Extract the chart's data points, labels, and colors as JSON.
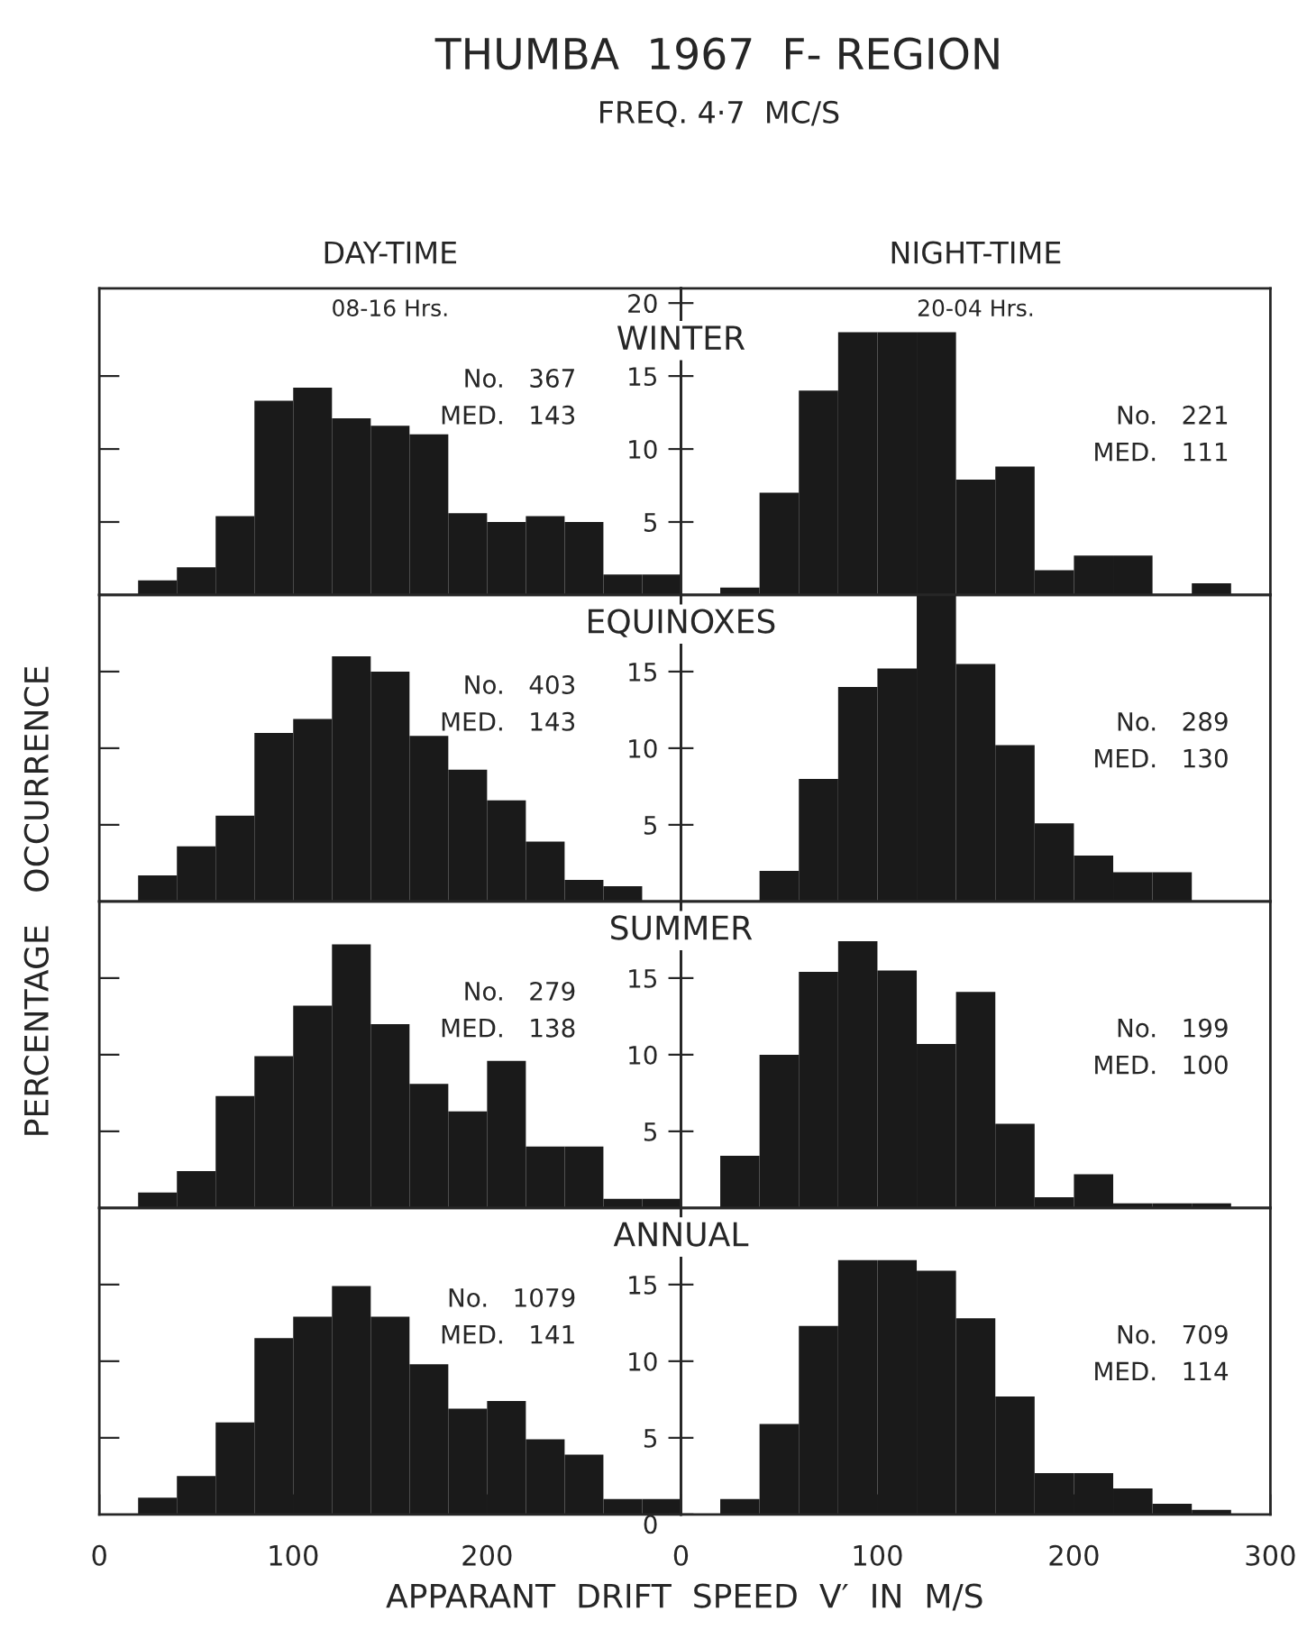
{
  "chart_data": [
    {
      "type": "histogram",
      "title": "DAY-TIME",
      "subtitle": "WINTER",
      "bins": [
        20,
        40,
        60,
        80,
        100,
        120,
        140,
        160,
        180,
        200,
        220,
        240,
        260,
        280,
        300
      ],
      "values": [
        1.0,
        1.9,
        5.4,
        13.3,
        14.2,
        12.1,
        11.6,
        11.0,
        5.6,
        5.0,
        5.4,
        5.0,
        1.4,
        1.4
      ],
      "color": "#1a1a1a",
      "xlim": [
        0,
        300
      ],
      "ylim": [
        0,
        21
      ],
      "yticks": [
        {
          "value": 5,
          "label": null
        },
        {
          "value": 10,
          "label": null
        },
        {
          "value": 15,
          "label": null
        }
      ],
      "tick_labels": false,
      "annotations": [
        "THUMBA  1967  F- REGION",
        "FREQ. 4·7  MC/S",
        "08-16 Hrs.",
        "No.   367",
        "MED.   143"
      ],
      "ylabel": "PERCENTAGE   OCCURRENCE"
    },
    {
      "type": "histogram",
      "title": "NIGHT-TIME",
      "bins": [
        20,
        40,
        60,
        80,
        100,
        120,
        140,
        160,
        180,
        200,
        220,
        240,
        260,
        280
      ],
      "values": [
        0.5,
        7.0,
        14.0,
        18.0,
        18.0,
        18.0,
        7.9,
        8.8,
        1.7,
        2.7,
        2.7,
        0,
        0.8
      ],
      "color": "#1a1a1a",
      "xlim": [
        0,
        300
      ],
      "ylim": [
        0,
        21
      ],
      "yticks": [
        5,
        10,
        15,
        20
      ],
      "tick_labels": "y",
      "annotations": [
        "20-04 Hrs.",
        "No.   221",
        "MED.   111"
      ]
    },
    {
      "type": "histogram",
      "subtitle": "EQUINOXES",
      "bins": [
        20,
        40,
        60,
        80,
        100,
        120,
        140,
        160,
        180,
        200,
        220,
        240,
        260,
        280
      ],
      "values": [
        1.7,
        3.6,
        5.6,
        11.0,
        11.9,
        16.0,
        15.0,
        10.8,
        8.6,
        6.6,
        3.9,
        1.4,
        1.0
      ],
      "color": "#1a1a1a",
      "xlim": [
        0,
        300
      ],
      "ylim": [
        0,
        20
      ],
      "yticks": [
        {
          "value": 5,
          "label": null
        },
        {
          "value": 10,
          "label": null
        },
        {
          "value": 15,
          "label": null
        }
      ],
      "tick_labels": false,
      "annotations": [
        "No.   403",
        "MED.   143"
      ]
    },
    {
      "type": "histogram",
      "bins": [
        40,
        60,
        80,
        100,
        120,
        140,
        160,
        180,
        200,
        220,
        240,
        260
      ],
      "values": [
        2.0,
        8.0,
        14.0,
        15.2,
        20.0,
        15.5,
        10.2,
        5.1,
        3.0,
        1.9,
        1.9
      ],
      "color": "#1a1a1a",
      "xlim": [
        0,
        300
      ],
      "ylim": [
        0,
        20
      ],
      "yticks": [
        5,
        10,
        15
      ],
      "tick_labels": "y",
      "annotations": [
        "No.   289",
        "MED.   130"
      ]
    },
    {
      "type": "histogram",
      "subtitle": "SUMMER",
      "bins": [
        20,
        40,
        60,
        80,
        100,
        120,
        140,
        160,
        180,
        200,
        220,
        240,
        260,
        280,
        300
      ],
      "values": [
        1.0,
        2.4,
        7.3,
        9.9,
        13.2,
        17.2,
        12.0,
        8.1,
        6.3,
        9.6,
        4.0,
        4.0,
        0.6,
        0.6
      ],
      "color": "#1a1a1a",
      "xlim": [
        0,
        300
      ],
      "ylim": [
        0,
        20
      ],
      "yticks": [
        {
          "value": 5,
          "label": null
        },
        {
          "value": 10,
          "label": null
        },
        {
          "value": 15,
          "label": null
        }
      ],
      "tick_labels": false,
      "annotations": [
        "No.   279",
        "MED.   138"
      ]
    },
    {
      "type": "histogram",
      "bins": [
        20,
        40,
        60,
        80,
        100,
        120,
        140,
        160,
        180,
        200,
        220,
        240,
        260,
        280
      ],
      "values": [
        3.4,
        10.0,
        15.4,
        17.4,
        15.5,
        10.7,
        14.1,
        5.5,
        0.7,
        2.2,
        0.3,
        0.3,
        0.3
      ],
      "color": "#1a1a1a",
      "xlim": [
        0,
        300
      ],
      "ylim": [
        0,
        20
      ],
      "yticks": [
        5,
        10,
        15
      ],
      "tick_labels": "y",
      "annotations": [
        "No.   199",
        "MED.   100"
      ]
    },
    {
      "type": "histogram",
      "subtitle": "ANNUAL",
      "bins": [
        20,
        40,
        60,
        80,
        100,
        120,
        140,
        160,
        180,
        200,
        220,
        240,
        260,
        280,
        300
      ],
      "values": [
        1.1,
        2.5,
        6.0,
        11.5,
        12.9,
        14.9,
        12.9,
        9.8,
        6.9,
        7.4,
        4.9,
        3.9,
        1.0,
        1.0
      ],
      "color": "#1a1a1a",
      "xlim": [
        0,
        300
      ],
      "xticks": [
        0,
        100,
        200
      ],
      "ylim": [
        0,
        20
      ],
      "yticks": [
        {
          "value": 5,
          "label": null
        },
        {
          "value": 10,
          "label": null
        },
        {
          "value": 15,
          "label": null
        }
      ],
      "tick_labels": "x",
      "annotations": [
        "No.   1079",
        "MED.   141"
      ],
      "xlabel": "APPARANT  DRIFT  SPEED  V′  IN  M/S"
    },
    {
      "type": "histogram",
      "bins": [
        20,
        40,
        60,
        80,
        100,
        120,
        140,
        160,
        180,
        200,
        220,
        240,
        260,
        280
      ],
      "values": [
        1.0,
        5.9,
        12.3,
        16.6,
        16.6,
        15.9,
        12.8,
        7.7,
        2.7,
        2.7,
        1.7,
        0.7,
        0.3
      ],
      "color": "#1a1a1a",
      "xlim": [
        0,
        300
      ],
      "xticks": [
        0,
        100,
        200,
        300
      ],
      "ylim": [
        0,
        20
      ],
      "yticks": [
        0,
        5,
        10,
        15
      ],
      "annotations": [
        "No.   709",
        "MED.   114"
      ]
    }
  ]
}
